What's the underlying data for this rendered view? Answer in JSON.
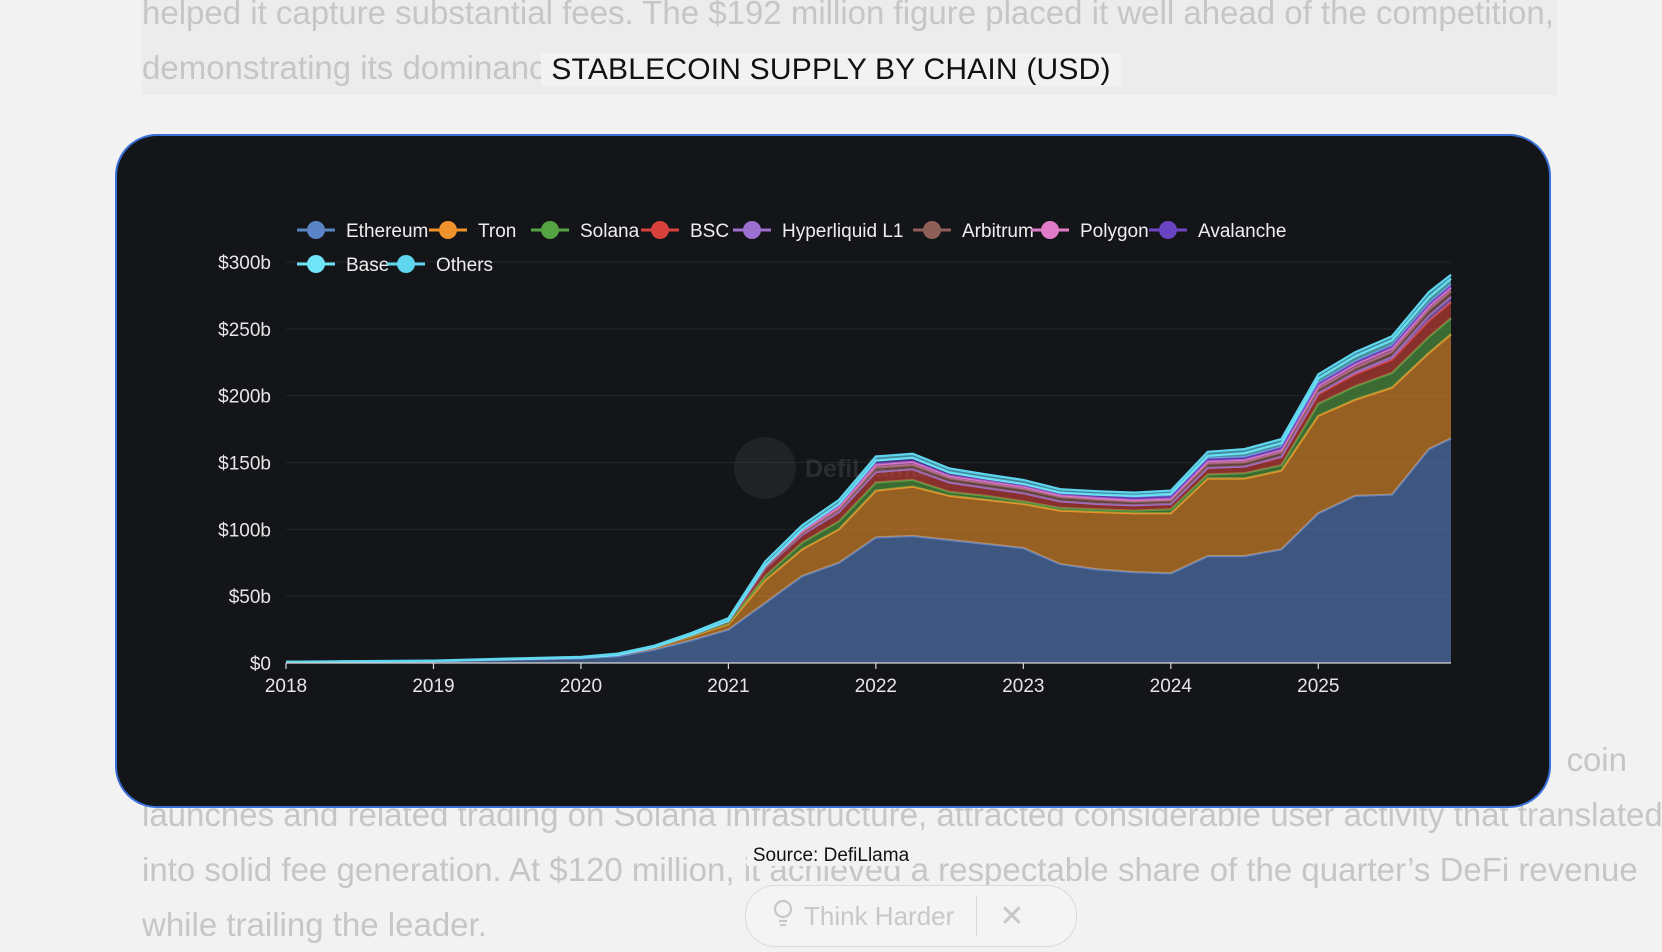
{
  "background_text": {
    "top_lines": [
      "helped it capture substantial fees. The $192 million figure placed it well ahead of the competition,",
      "demonstrating its dominance in a key category for the quarter."
    ],
    "bottom_lines": [
      "coin",
      "launches and related trading on Solana infrastructure, attracted considerable user activity that translated",
      "into solid fee generation. At $120 million, it achieved a respectable share of the quarter’s DeFi revenue",
      "while trailing the leader."
    ]
  },
  "modal": {
    "title": "STABLECOIN SUPPLY BY CHAIN (USD)",
    "source": "Source: DefiLlama",
    "watermark": "DefiLlama"
  },
  "think_pill": {
    "icon": "lightbulb-icon",
    "label": "Think Harder",
    "close_icon": "close-icon"
  },
  "chart_data": {
    "type": "area",
    "title": "STABLECOIN SUPPLY BY CHAIN (USD)",
    "xlabel": "",
    "ylabel": "",
    "y_unit": "USD billions",
    "xlim": [
      2018.0,
      2025.9
    ],
    "ylim": [
      0,
      300
    ],
    "x_ticks": [
      "2018",
      "2019",
      "2020",
      "2021",
      "2022",
      "2023",
      "2024",
      "2025"
    ],
    "y_ticks": [
      "$0",
      "$50b",
      "$100b",
      "$150b",
      "$200b",
      "$250b",
      "$300b"
    ],
    "grid": true,
    "stacked": true,
    "legend_position": "top-left",
    "x": [
      2018.0,
      2019.0,
      2019.5,
      2020.0,
      2020.25,
      2020.5,
      2020.75,
      2021.0,
      2021.25,
      2021.5,
      2021.75,
      2022.0,
      2022.25,
      2022.5,
      2022.75,
      2023.0,
      2023.25,
      2023.5,
      2023.75,
      2024.0,
      2024.25,
      2024.5,
      2024.75,
      2025.0,
      2025.25,
      2025.5,
      2025.75,
      2025.9
    ],
    "series": [
      {
        "name": "Ethereum",
        "color": "#5b84c6",
        "values": [
          0.8,
          1.5,
          2.5,
          3.5,
          5,
          10,
          17,
          25,
          45,
          65,
          75,
          94,
          95,
          92,
          89,
          86,
          74,
          70,
          68,
          67,
          80,
          80,
          85,
          112,
          125,
          126,
          160,
          168
        ]
      },
      {
        "name": "Tron",
        "color": "#f0922b",
        "values": [
          0,
          0,
          0.3,
          0.5,
          1,
          2,
          3,
          4,
          17,
          20,
          25,
          35,
          37,
          33,
          33,
          33,
          40,
          43,
          44,
          45,
          58,
          58,
          59,
          73,
          72,
          80,
          72,
          78
        ]
      },
      {
        "name": "Solana",
        "color": "#56a344",
        "values": [
          0,
          0,
          0,
          0,
          0,
          0,
          0.5,
          1,
          3,
          5,
          6,
          6,
          5,
          3,
          3,
          2,
          2,
          2,
          2,
          3,
          3,
          4,
          4,
          9,
          10,
          11,
          12,
          12
        ]
      },
      {
        "name": "BSC",
        "color": "#d6423b",
        "values": [
          0,
          0,
          0,
          0,
          0,
          0,
          0.5,
          1,
          6,
          6,
          7,
          8,
          8,
          7,
          6,
          6,
          5,
          4,
          4,
          4,
          5,
          5,
          6,
          7,
          9,
          10,
          12,
          12
        ]
      },
      {
        "name": "Hyperliquid L1",
        "color": "#9d6fd0",
        "values": [
          0,
          0,
          0,
          0,
          0,
          0,
          0,
          0,
          0,
          0,
          0,
          0,
          0,
          0,
          0,
          0,
          0,
          0,
          0,
          0,
          0,
          0,
          0.5,
          1,
          1.5,
          2,
          4,
          4
        ]
      },
      {
        "name": "Arbitrum",
        "color": "#8d5f57",
        "values": [
          0,
          0,
          0,
          0,
          0,
          0,
          0,
          0,
          0.5,
          1,
          2,
          3,
          3,
          3,
          3,
          3,
          3,
          3,
          2.5,
          2.5,
          3,
          3,
          3,
          3,
          3,
          3.5,
          4,
          4
        ]
      },
      {
        "name": "Polygon",
        "color": "#e07bc7",
        "values": [
          0,
          0,
          0,
          0,
          0,
          0,
          0,
          0.5,
          1,
          2,
          2,
          2.5,
          2.5,
          2,
          2,
          2,
          1.5,
          1.5,
          1.5,
          1.5,
          2,
          2,
          2,
          2.5,
          3,
          3,
          3,
          3
        ]
      },
      {
        "name": "Avalanche",
        "color": "#6b44c4",
        "values": [
          0,
          0,
          0,
          0,
          0,
          0,
          0,
          0,
          0.5,
          1,
          2,
          3,
          3,
          2.5,
          2,
          2,
          2,
          2,
          2,
          2,
          2,
          2,
          2,
          2,
          2,
          2,
          2,
          2
        ]
      },
      {
        "name": "Base",
        "color": "#6fe4f6",
        "values": [
          0,
          0,
          0,
          0,
          0,
          0,
          0,
          0,
          0,
          0,
          0,
          0,
          0,
          0,
          0,
          0,
          0,
          0.5,
          1,
          1.5,
          2,
          3,
          3,
          3.5,
          4,
          4,
          4.5,
          4.5
        ]
      },
      {
        "name": "Others",
        "color": "#5fd6ef",
        "values": [
          0.2,
          0.3,
          0.5,
          0.6,
          1,
          1,
          1.5,
          2,
          3,
          3,
          3,
          3,
          3,
          3,
          3,
          3,
          2.5,
          2.5,
          2.5,
          2.5,
          3,
          3,
          3,
          3,
          3,
          3,
          4,
          3
        ]
      }
    ]
  }
}
